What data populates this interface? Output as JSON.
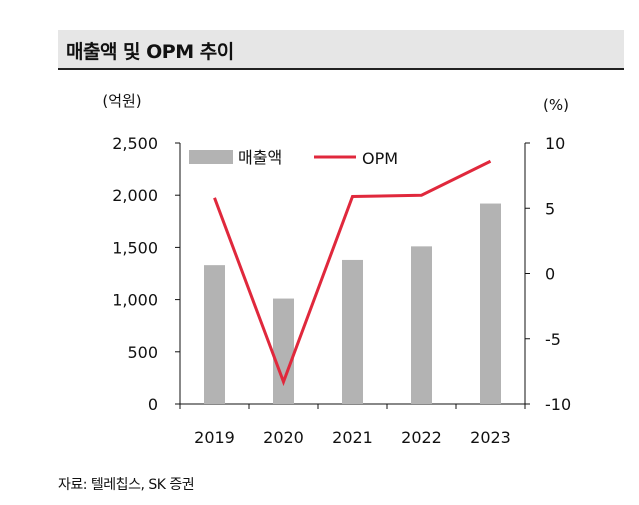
{
  "header": {
    "title": "매출액 및 OPM 추이"
  },
  "source": "자료: 텔레칩스, SK 증권",
  "chart_data": {
    "type": "bar+line",
    "categories": [
      "2019",
      "2020",
      "2021",
      "2022",
      "2023"
    ],
    "series": [
      {
        "name": "매출액",
        "type": "bar",
        "axis": "left",
        "color": "#b3b3b3",
        "values": [
          1330,
          1010,
          1380,
          1510,
          1920
        ]
      },
      {
        "name": "OPM",
        "type": "line",
        "axis": "right",
        "color": "#e0283c",
        "values": [
          5.8,
          -8.3,
          5.9,
          6.0,
          8.6
        ]
      }
    ],
    "left_axis": {
      "unit_label": "(억원)",
      "ylim": [
        0,
        2500
      ],
      "ticks": [
        0,
        500,
        1000,
        1500,
        2000,
        2500
      ],
      "tick_labels": [
        "0",
        "500",
        "1,000",
        "1,500",
        "2,000",
        "2,500"
      ]
    },
    "right_axis": {
      "unit_label": "(%)",
      "ylim": [
        -10,
        10
      ],
      "ticks": [
        -10,
        -5,
        0,
        5,
        10
      ],
      "tick_labels": [
        "-10",
        "-5",
        "0",
        "5",
        "10"
      ]
    },
    "legend": {
      "position": "top-left"
    }
  }
}
